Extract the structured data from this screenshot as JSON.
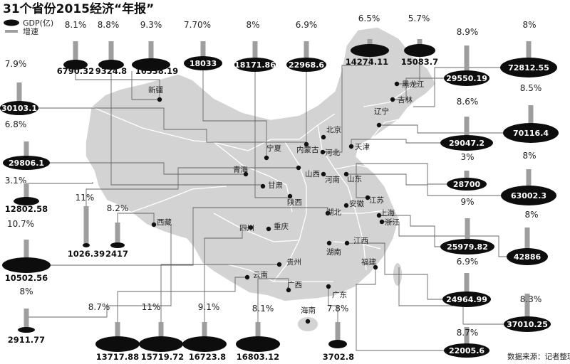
{
  "title": "31个省份2015经济“年报”",
  "legend": {
    "gdp": "GDP(亿)",
    "growth": "增速"
  },
  "source": "数据来源：记者整理",
  "colors": {
    "map": "#d3d3d3",
    "border": "#ffffff",
    "bar": "#9e9e9e",
    "ellipse": "#0d0d0d",
    "leader": "#666666"
  },
  "chart_data": {
    "type": "bar",
    "title": "31个省份2015经济“年报”",
    "series": [
      {
        "name": "GDP(亿)",
        "unit": "亿"
      },
      {
        "name": "增速",
        "unit": "%"
      }
    ],
    "values": [
      {
        "gdp": "6790.32",
        "growth": "8.1%"
      },
      {
        "gdp": "9324.8",
        "growth": "8.8%"
      },
      {
        "gdp": "16538.19",
        "growth": "9.3%"
      },
      {
        "gdp": "18033",
        "growth": "7.70%"
      },
      {
        "gdp": "18171.86",
        "growth": "8%"
      },
      {
        "gdp": "22968.6",
        "growth": "6.9%"
      },
      {
        "gdp": "14274.11",
        "growth": "6.5%"
      },
      {
        "gdp": "15083.7",
        "growth": "5.7%"
      },
      {
        "gdp": "29550.19",
        "growth": "8.9%"
      },
      {
        "gdp": "72812.55",
        "growth": "8%"
      },
      {
        "gdp": "30103.1",
        "growth": "7.9%"
      },
      {
        "gdp": "29806.1",
        "growth": "6.8%"
      },
      {
        "gdp": "12802.58",
        "growth": "3.1%"
      },
      {
        "gdp": "1026.39",
        "growth": "11%"
      },
      {
        "gdp": "2417",
        "growth": "8.2%"
      },
      {
        "gdp": "10502.56",
        "growth": "10.7%"
      },
      {
        "gdp": "2911.77",
        "growth": "8%"
      },
      {
        "gdp": "13717.88",
        "growth": "8.7%"
      },
      {
        "gdp": "15719.72",
        "growth": "11%"
      },
      {
        "gdp": "16723.8",
        "growth": "9.1%"
      },
      {
        "gdp": "16803.12",
        "growth": "8.1%"
      },
      {
        "gdp": "3702.8",
        "growth": "7.8%"
      },
      {
        "gdp": "22005.6",
        "growth": "8.7%"
      },
      {
        "gdp": "37010.25",
        "growth": "8.3%"
      },
      {
        "gdp": "24964.99",
        "growth": "6.9%"
      },
      {
        "gdp": "42886",
        "growth": "8%"
      },
      {
        "gdp": "25979.82",
        "growth": "9%"
      },
      {
        "gdp": "63002.3",
        "growth": "8%"
      },
      {
        "gdp": "28700",
        "growth": "3%"
      },
      {
        "gdp": "70116.4",
        "growth": "8.5%"
      },
      {
        "gdp": "29047.2",
        "growth": "8.6%"
      }
    ],
    "provinces": [
      "新疆",
      "黑龙江",
      "吉林",
      "辽宁",
      "北京",
      "天津",
      "宁夏",
      "内蒙古",
      "河北",
      "青海",
      "甘肃",
      "山西",
      "山东",
      "河南",
      "陕西",
      "江苏",
      "安徽",
      "上海",
      "湖北",
      "浙江",
      "西藏",
      "四川",
      "重庆",
      "江西",
      "湖南",
      "贵州",
      "福建",
      "云南",
      "广西",
      "广东",
      "海南"
    ]
  }
}
